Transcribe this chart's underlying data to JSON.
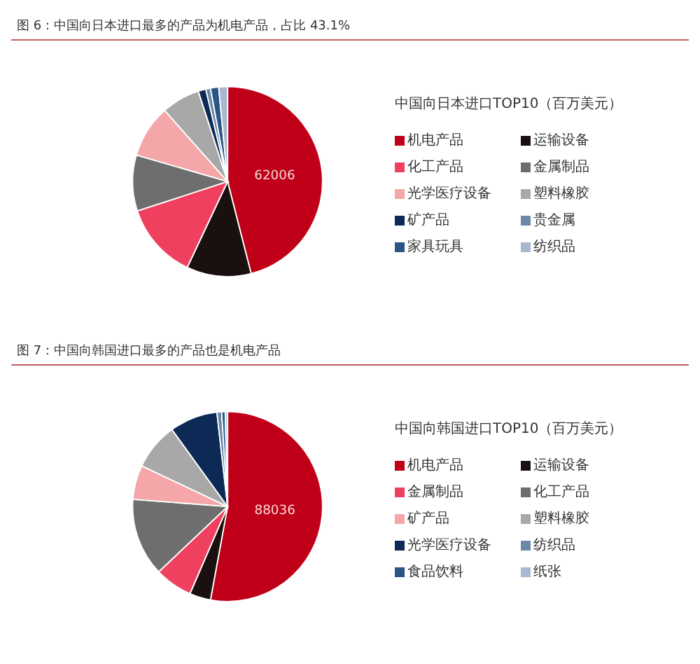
{
  "chart_data": [
    {
      "type": "pie",
      "title": "图 6：中国向日本进口最多的产品为机电产品，占比 43.1%",
      "legend_title": "中国向日本进口TOP10（百万美元）",
      "categories": [
        "机电产品",
        "运输设备",
        "化工产品",
        "金属制品",
        "光学医疗设备",
        "塑料橡胶",
        "矿产品",
        "贵金属",
        "家具玩具",
        "纺织品"
      ],
      "values": [
        62006,
        14800,
        17500,
        12800,
        12100,
        8800,
        1750,
        1080,
        1890,
        2020
      ],
      "value_labels": [
        "62006",
        null,
        null,
        null,
        null,
        null,
        null,
        null,
        null,
        null
      ],
      "colors": [
        "#c00018",
        "#1a1010",
        "#f04060",
        "#6e6e6e",
        "#f4a6a8",
        "#a8a8a8",
        "#0c2a55",
        "#6c88a8",
        "#2a5585",
        "#a8b8d0"
      ],
      "legend": "right"
    },
    {
      "type": "pie",
      "title": "图 7：中国向韩国进口最多的产品也是机电产品",
      "legend_title": "中国向韩国进口TOP10（百万美元）",
      "categories": [
        "机电产品",
        "运输设备",
        "金属制品",
        "化工产品",
        "矿产品",
        "塑料橡胶",
        "光学医疗设备",
        "纺织品",
        "食品饮料",
        "纸张"
      ],
      "values": [
        88036,
        6000,
        10700,
        22100,
        9700,
        13300,
        13600,
        1330,
        1000,
        670
      ],
      "value_labels": [
        "88036",
        null,
        null,
        null,
        null,
        null,
        null,
        null,
        null,
        null
      ],
      "colors": [
        "#c00018",
        "#1a1010",
        "#f04060",
        "#6e6e6e",
        "#f4a6a8",
        "#a8a8a8",
        "#0c2a55",
        "#6c88a8",
        "#2a5585",
        "#a8b8d0"
      ],
      "legend": "right"
    }
  ]
}
